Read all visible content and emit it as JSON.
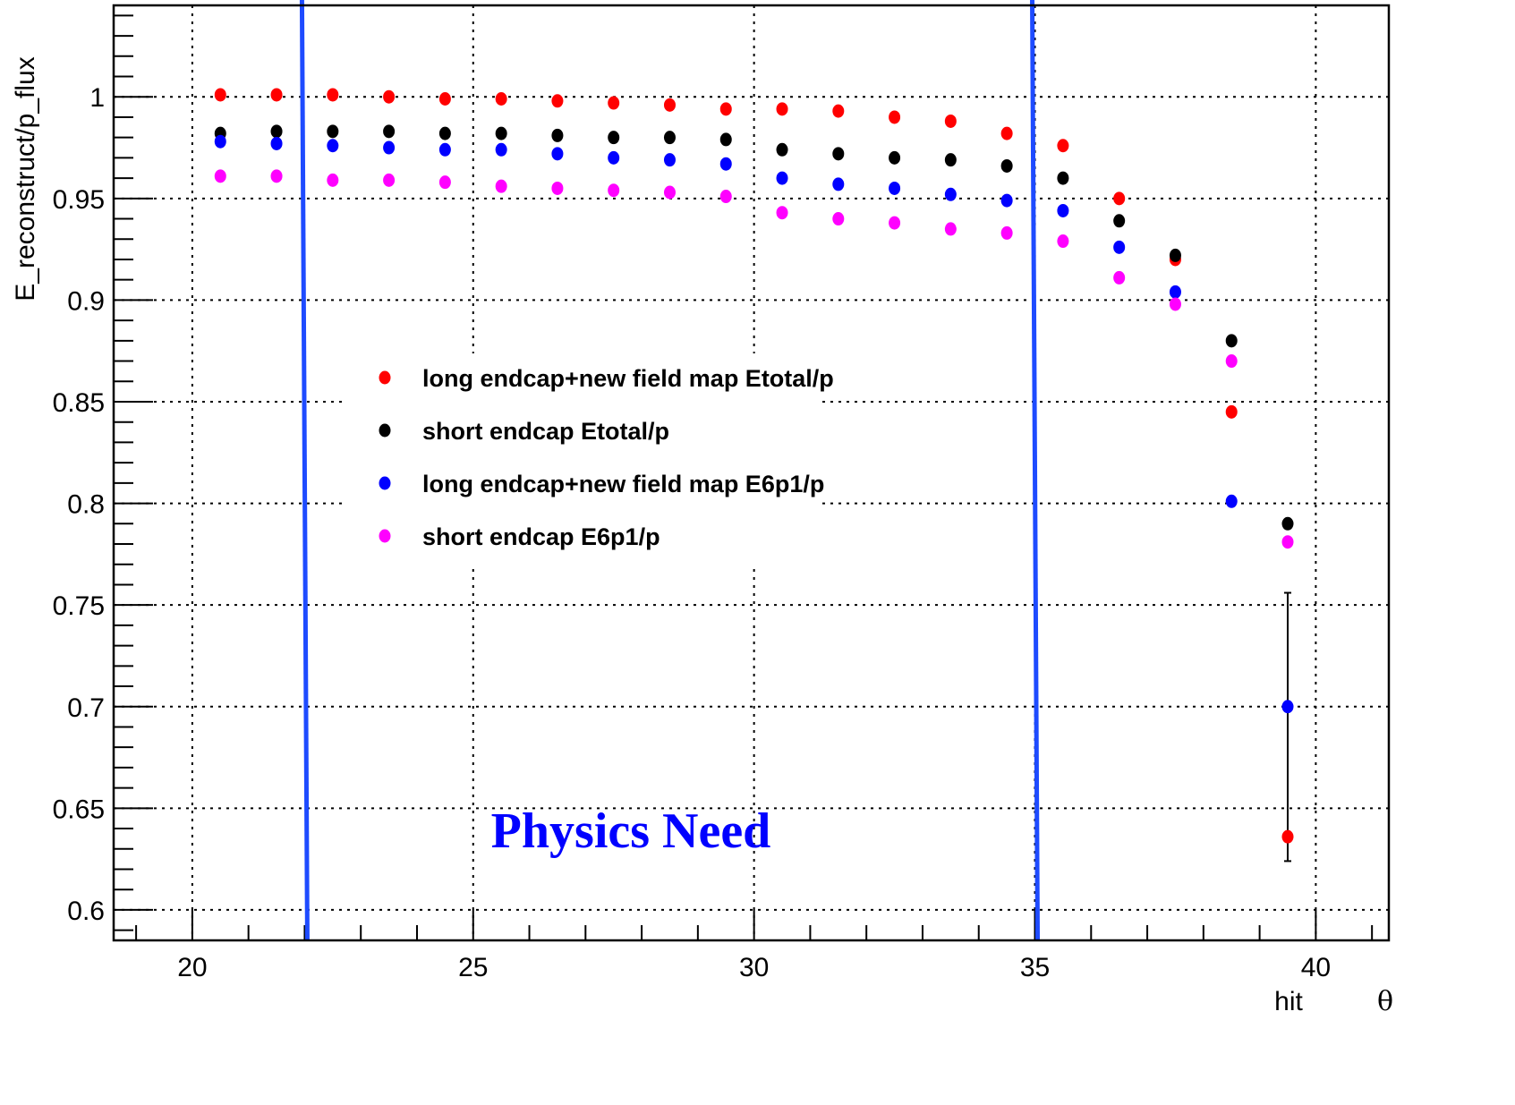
{
  "chart_data": {
    "type": "scatter",
    "xlabel": "hit",
    "xlabel_symbol": "θ",
    "ylabel": "E_reconstruct/p_flux",
    "xlim": [
      18.6,
      41.3
    ],
    "ylim": [
      0.585,
      1.045
    ],
    "x_ticks": [
      "20",
      "25",
      "30",
      "35",
      "40"
    ],
    "y_ticks": [
      "0.6",
      "0.65",
      "0.7",
      "0.75",
      "0.8",
      "0.85",
      "0.9",
      "0.95",
      "1"
    ],
    "grid": true,
    "legend_placement": "center",
    "x": [
      20.5,
      21.5,
      22.5,
      23.5,
      24.5,
      25.5,
      26.5,
      27.5,
      28.5,
      29.5,
      30.5,
      31.5,
      32.5,
      33.5,
      34.5,
      35.5,
      36.5,
      37.5,
      38.5,
      39.5
    ],
    "series": [
      {
        "name": "long endcap+new field map Etotal/p",
        "color": "#ff0000",
        "values": [
          1.001,
          1.001,
          1.001,
          1.0,
          0.999,
          0.999,
          0.998,
          0.997,
          0.996,
          0.994,
          0.994,
          0.993,
          0.99,
          0.988,
          0.982,
          0.976,
          0.95,
          0.92,
          0.845,
          0.636
        ]
      },
      {
        "name": "short endcap Etotal/p",
        "color": "#000000",
        "values": [
          0.982,
          0.983,
          0.983,
          0.983,
          0.982,
          0.982,
          0.981,
          0.98,
          0.98,
          0.979,
          0.974,
          0.972,
          0.97,
          0.969,
          0.966,
          0.96,
          0.939,
          0.922,
          0.88,
          0.79
        ]
      },
      {
        "name": "long endcap+new field map E6p1/p",
        "color": "#0000ff",
        "values": [
          0.978,
          0.977,
          0.976,
          0.975,
          0.974,
          0.974,
          0.972,
          0.97,
          0.969,
          0.967,
          0.96,
          0.957,
          0.955,
          0.952,
          0.949,
          0.944,
          0.926,
          0.904,
          0.801,
          0.7
        ]
      },
      {
        "name": "short endcap E6p1/p",
        "color": "#ff00ff",
        "values": [
          0.961,
          0.961,
          0.959,
          0.959,
          0.958,
          0.956,
          0.955,
          0.954,
          0.953,
          0.951,
          0.943,
          0.94,
          0.938,
          0.935,
          0.933,
          0.929,
          0.911,
          0.898,
          0.87,
          0.781
        ]
      }
    ],
    "error_bars": [
      {
        "x": 39.5,
        "y_low": 0.624,
        "y_high": 0.756
      }
    ],
    "vertical_lines": [
      {
        "x": 22.0,
        "color": "#1e4bff"
      },
      {
        "x": 35.0,
        "color": "#1e4bff"
      }
    ],
    "annotations": [
      {
        "text": "Physics Need",
        "color": "#0000ff"
      }
    ]
  }
}
